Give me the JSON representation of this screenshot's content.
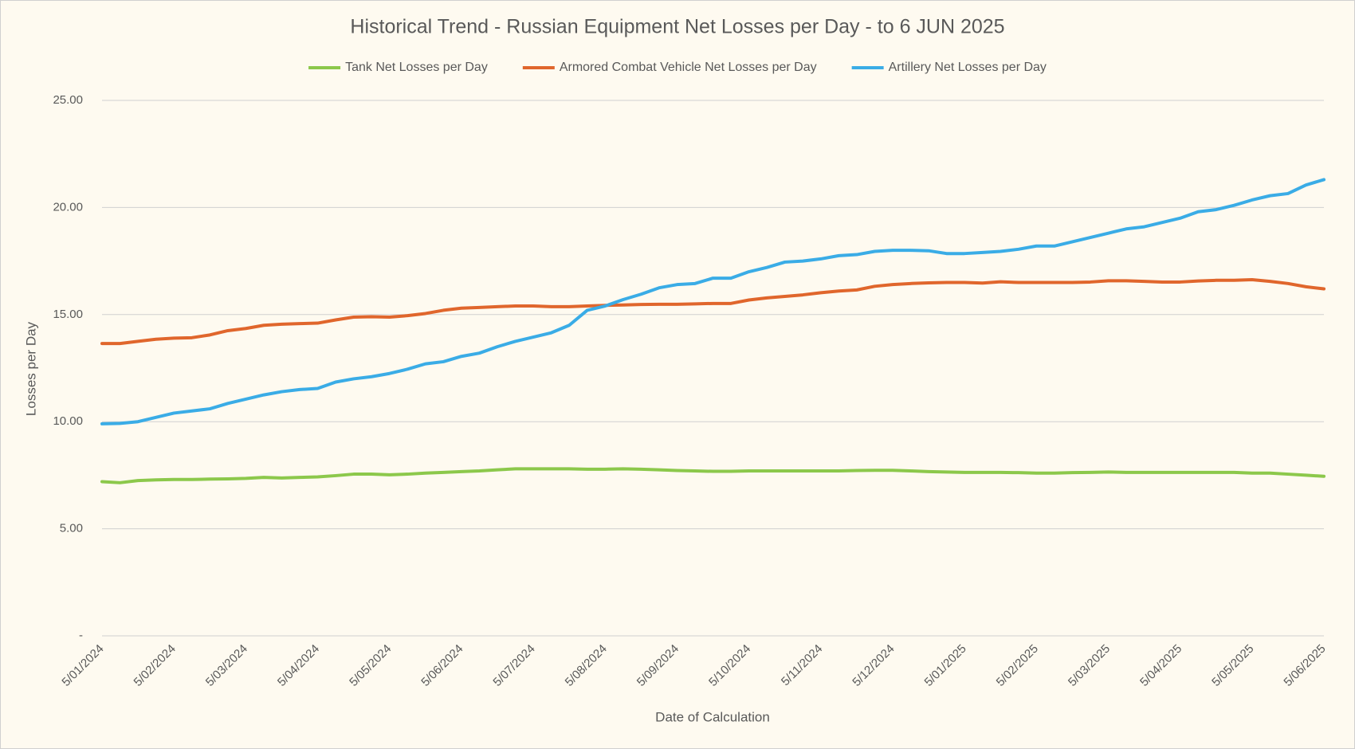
{
  "chart_data": {
    "type": "line",
    "title": "Historical Trend - Russian Equipment Net Losses per Day - to 6 JUN 2025",
    "x_label": "Date of Calculation",
    "y_label": "Losses per Day",
    "categories": [
      "5/01/2024",
      null,
      null,
      null,
      "5/02/2024",
      null,
      null,
      null,
      "5/03/2024",
      null,
      null,
      null,
      "5/04/2024",
      null,
      null,
      null,
      "5/05/2024",
      null,
      null,
      null,
      "5/06/2024",
      null,
      null,
      null,
      "5/07/2024",
      null,
      null,
      null,
      "5/08/2024",
      null,
      null,
      null,
      "5/09/2024",
      null,
      null,
      null,
      "5/10/2024",
      null,
      null,
      null,
      "5/11/2024",
      null,
      null,
      null,
      "5/12/2024",
      null,
      null,
      null,
      "5/01/2025",
      null,
      null,
      null,
      "5/02/2025",
      null,
      null,
      null,
      "5/03/2025",
      null,
      null,
      null,
      "5/04/2025",
      null,
      null,
      null,
      "5/05/2025",
      null,
      null,
      null,
      "5/06/2025"
    ],
    "series": [
      {
        "name": "Tank Net Losses per Day",
        "color": "#8cc84b",
        "values": [
          7.2,
          7.15,
          7.25,
          7.28,
          7.3,
          7.3,
          7.32,
          7.33,
          7.35,
          7.4,
          7.37,
          7.4,
          7.42,
          7.48,
          7.55,
          7.55,
          7.52,
          7.55,
          7.6,
          7.63,
          7.67,
          7.7,
          7.75,
          7.8,
          7.8,
          7.8,
          7.8,
          7.78,
          7.78,
          7.8,
          7.78,
          7.75,
          7.72,
          7.7,
          7.68,
          7.68,
          7.7,
          7.7,
          7.7,
          7.7,
          7.7,
          7.7,
          7.72,
          7.73,
          7.73,
          7.7,
          7.67,
          7.65,
          7.63,
          7.63,
          7.63,
          7.62,
          7.6,
          7.6,
          7.62,
          7.63,
          7.65,
          7.63,
          7.63,
          7.63,
          7.63,
          7.63,
          7.63,
          7.63,
          7.6,
          7.6,
          7.55,
          7.5,
          7.45
        ]
      },
      {
        "name": "Armored Combat Vehicle Net Losses per Day",
        "color": "#e0662c",
        "values": [
          13.65,
          13.65,
          13.75,
          13.85,
          13.9,
          13.92,
          14.05,
          14.25,
          14.35,
          14.5,
          14.55,
          14.58,
          14.6,
          14.75,
          14.88,
          14.9,
          14.88,
          14.95,
          15.05,
          15.2,
          15.3,
          15.33,
          15.37,
          15.4,
          15.4,
          15.37,
          15.37,
          15.4,
          15.43,
          15.45,
          15.47,
          15.48,
          15.48,
          15.5,
          15.52,
          15.52,
          15.68,
          15.78,
          15.85,
          15.92,
          16.02,
          16.1,
          16.15,
          16.32,
          16.4,
          16.45,
          16.48,
          16.5,
          16.5,
          16.47,
          16.53,
          16.5,
          16.5,
          16.5,
          16.5,
          16.52,
          16.58,
          16.58,
          16.55,
          16.52,
          16.52,
          16.57,
          16.6,
          16.6,
          16.63,
          16.55,
          16.45,
          16.3,
          16.2
        ]
      },
      {
        "name": "Artillery Net Losses per Day",
        "color": "#3aace6",
        "values": [
          9.9,
          9.92,
          10.0,
          10.2,
          10.4,
          10.5,
          10.6,
          10.85,
          11.05,
          11.25,
          11.4,
          11.5,
          11.55,
          11.85,
          12.0,
          12.1,
          12.25,
          12.45,
          12.7,
          12.8,
          13.05,
          13.2,
          13.5,
          13.75,
          13.95,
          14.15,
          14.5,
          15.2,
          15.4,
          15.7,
          15.95,
          16.25,
          16.4,
          16.45,
          16.7,
          16.7,
          17.0,
          17.2,
          17.45,
          17.5,
          17.6,
          17.75,
          17.8,
          17.95,
          18.0,
          18.0,
          17.98,
          17.85,
          17.85,
          17.9,
          17.95,
          18.05,
          18.2,
          18.2,
          18.4,
          18.6,
          18.8,
          19.0,
          19.1,
          19.3,
          19.5,
          19.8,
          19.9,
          20.1,
          20.35,
          20.55,
          20.65,
          21.05,
          21.3
        ]
      }
    ],
    "ylim": [
      0,
      25
    ],
    "yticks": [
      {
        "value": 0,
        "label": "-"
      },
      {
        "value": 5,
        "label": "5.00"
      },
      {
        "value": 10,
        "label": "10.00"
      },
      {
        "value": 15,
        "label": "15.00"
      },
      {
        "value": 20,
        "label": "20.00"
      },
      {
        "value": 25,
        "label": "25.00"
      }
    ],
    "grid": true,
    "legend": "top"
  }
}
